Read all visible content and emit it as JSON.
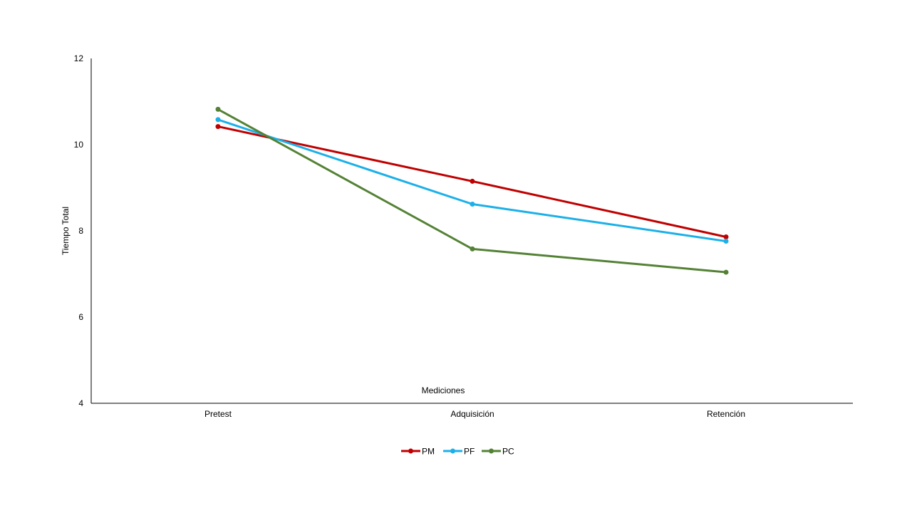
{
  "chart_data": {
    "type": "line",
    "categories": [
      "Pretest",
      "Adquisición",
      "Retención"
    ],
    "series": [
      {
        "name": "PM",
        "color": "#C00000",
        "values": [
          10.42,
          9.15,
          7.86
        ]
      },
      {
        "name": "PF",
        "color": "#1CB0E8",
        "values": [
          10.58,
          8.62,
          7.76
        ]
      },
      {
        "name": "PC",
        "color": "#548235",
        "values": [
          10.82,
          7.58,
          7.04
        ]
      }
    ],
    "xlabel": "Mediciones",
    "ylabel": "Tiempo Total",
    "ylim": [
      4,
      12
    ],
    "yticks": [
      4,
      6,
      8,
      10,
      12
    ],
    "grid": false,
    "legend": "bottom"
  }
}
